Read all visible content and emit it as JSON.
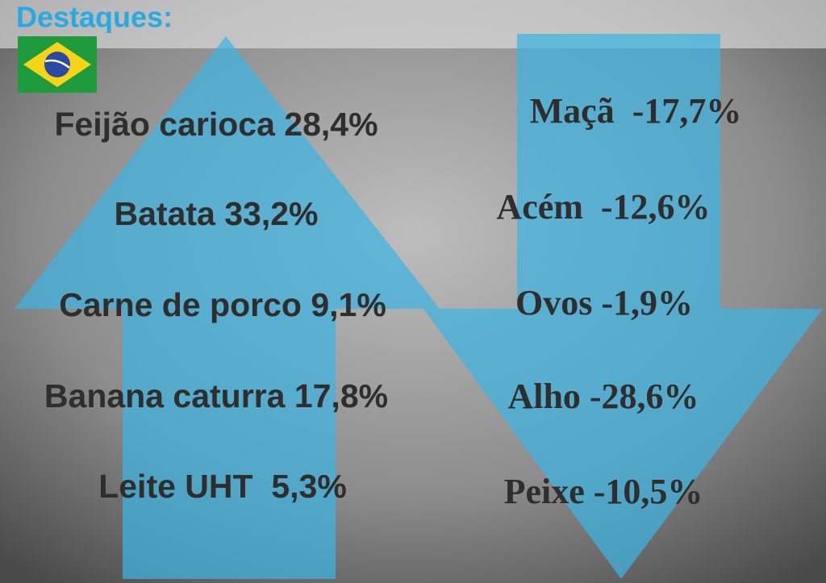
{
  "title": "Destaques:",
  "increases": [
    "Feijão carioca 28,4%",
    "Batata 33,2%",
    "Carne de porco 9,1%",
    "Banana caturra 17,8%",
    "Leite UHT  5,3%"
  ],
  "decreases": [
    "Maçã  -17,7%",
    "Acém  -12,6%",
    "Ovos -1,9%",
    "Alho -28,6%",
    "Peixe -10,5%"
  ]
}
